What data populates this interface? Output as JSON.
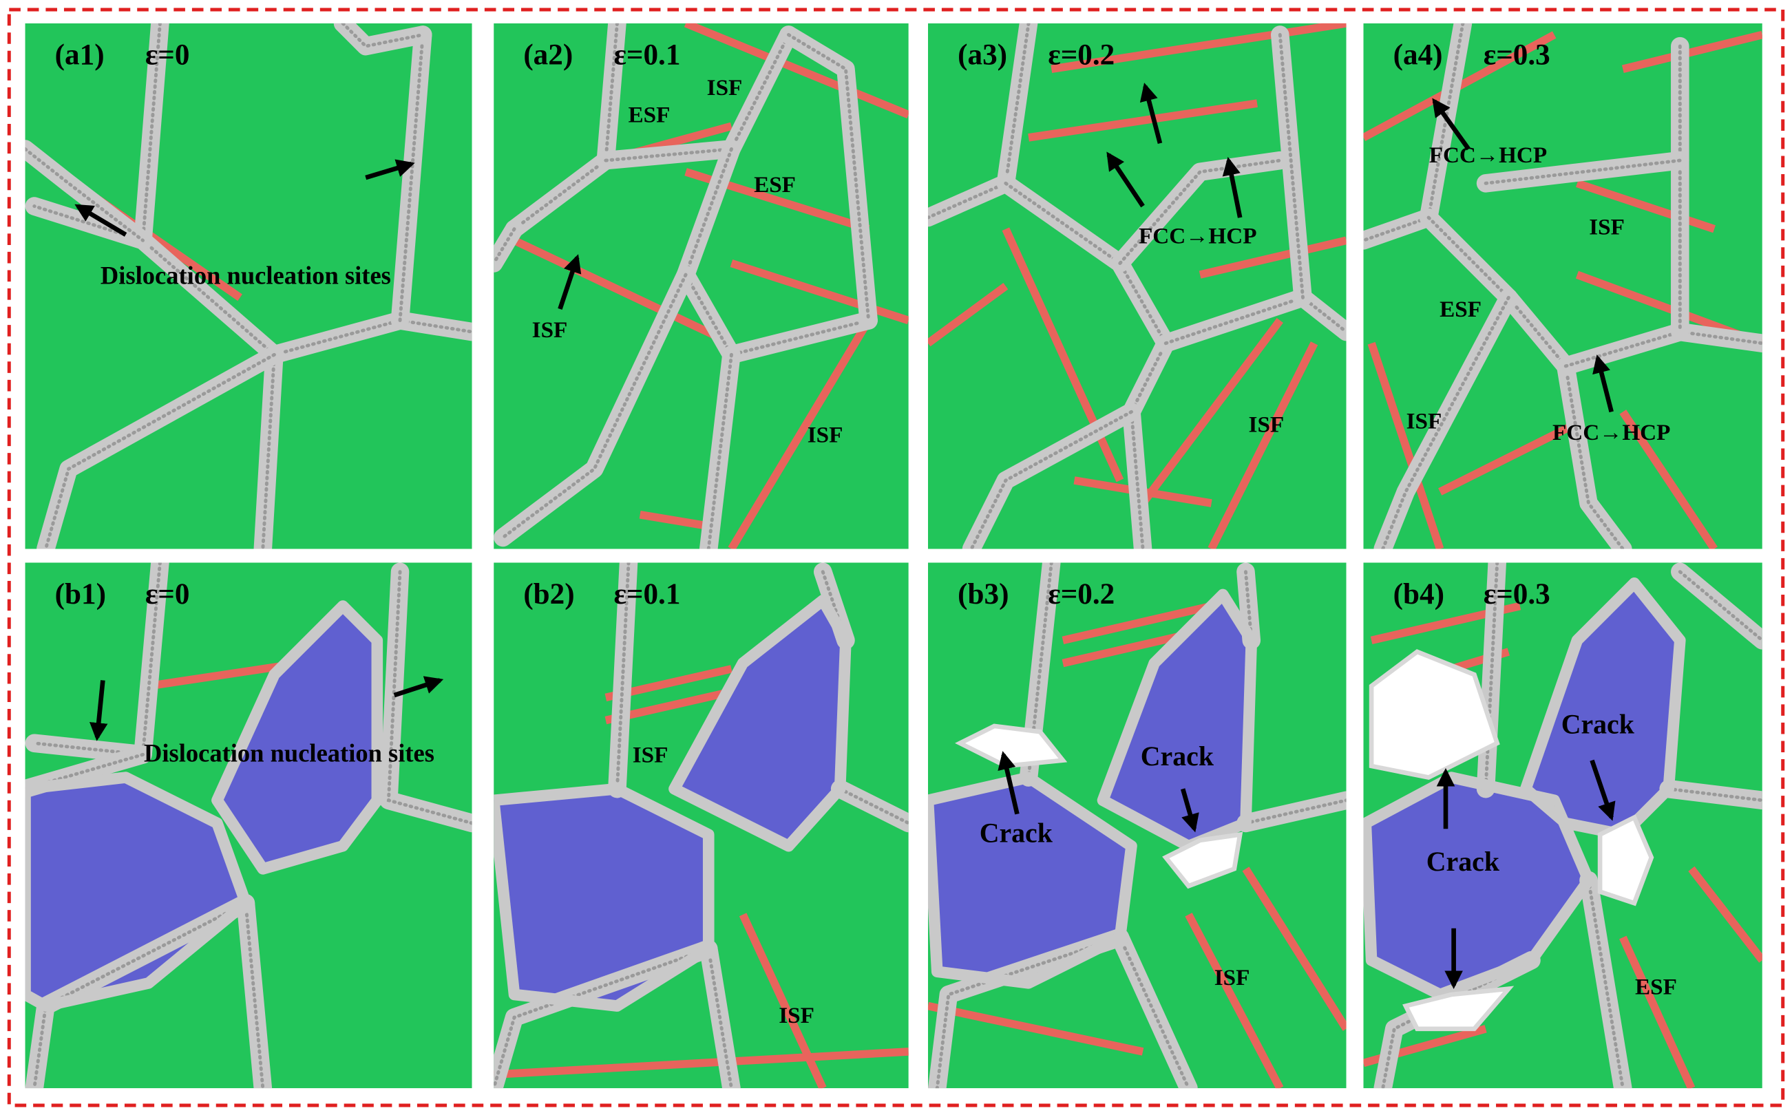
{
  "panels": [
    {
      "label": "(a1)",
      "strain": "ε=0",
      "annotations": [
        "Dislocation nucleation sites"
      ]
    },
    {
      "label": "(a2)",
      "strain": "ε=0.1",
      "annotations": [
        "ESF",
        "ISF",
        "ESF",
        "ISF",
        "ISF"
      ]
    },
    {
      "label": "(a3)",
      "strain": "ε=0.2",
      "annotations": [
        "FCC→HCP",
        "ISF"
      ]
    },
    {
      "label": "(a4)",
      "strain": "ε=0.3",
      "annotations": [
        "FCC→HCP",
        "ISF",
        "ESF",
        "ISF",
        "FCC→HCP"
      ]
    },
    {
      "label": "(b1)",
      "strain": "ε=0",
      "annotations": [
        "Dislocation nucleation sites"
      ]
    },
    {
      "label": "(b2)",
      "strain": "ε=0.1",
      "annotations": [
        "ISF",
        "ISF"
      ]
    },
    {
      "label": "(b3)",
      "strain": "ε=0.2",
      "annotations": [
        "Crack",
        "Crack",
        "ISF"
      ]
    },
    {
      "label": "(b4)",
      "strain": "ε=0.3",
      "annotations": [
        "Crack",
        "Crack",
        "ESF"
      ]
    }
  ]
}
